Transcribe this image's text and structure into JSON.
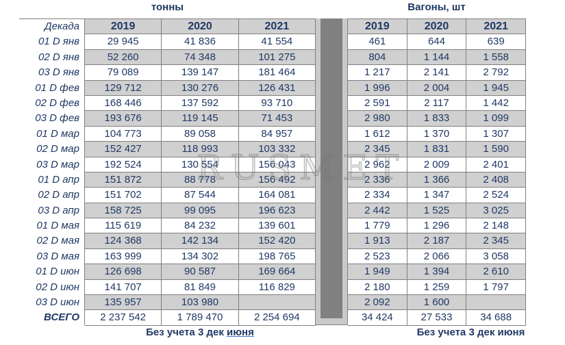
{
  "titles": {
    "left": "тонны",
    "right": "Вагоны, шт"
  },
  "label_header": "Декада",
  "total_label": "ВСЕГО",
  "years": [
    "2019",
    "2020",
    "2021"
  ],
  "row_labels": [
    "01 D янв",
    "02 D янв",
    "03 D янв",
    "01 D фев",
    "02 D фев",
    "03 D фев",
    "01 D мар",
    "02 D мар",
    "03 D мар",
    "01 D апр",
    "02 D апр",
    "03 D апр",
    "01 D мая",
    "02 D мая",
    "03 D мая",
    "01 D июн",
    "02 D июн",
    "03 D июн"
  ],
  "tons": {
    "rows": [
      [
        "29 945",
        "41 836",
        "41 554"
      ],
      [
        "52 260",
        "74 348",
        "101 275"
      ],
      [
        "79 089",
        "139 147",
        "181 464"
      ],
      [
        "129 712",
        "130 276",
        "126 431"
      ],
      [
        "168 446",
        "137 592",
        "93 710"
      ],
      [
        "193 676",
        "119 145",
        "71 453"
      ],
      [
        "104 773",
        "89 058",
        "84 957"
      ],
      [
        "152 427",
        "118 993",
        "103 332"
      ],
      [
        "192 524",
        "130 554",
        "156 043"
      ],
      [
        "151 872",
        "88 778",
        "156 492"
      ],
      [
        "151 702",
        "87 544",
        "164 081"
      ],
      [
        "158 725",
        "99 095",
        "196 623"
      ],
      [
        "115 619",
        "84 232",
        "139 601"
      ],
      [
        "124 368",
        "142 134",
        "152 420"
      ],
      [
        "163 999",
        "134 302",
        "198 765"
      ],
      [
        "126 698",
        "90 587",
        "169 664"
      ],
      [
        "141 707",
        "81 849",
        "116 829"
      ],
      [
        "135 957",
        "103 980",
        ""
      ]
    ],
    "total": [
      "2 237 542",
      "1 789 470",
      "2 254 694"
    ]
  },
  "wagons": {
    "rows": [
      [
        "461",
        "644",
        "639"
      ],
      [
        "804",
        "1 144",
        "1 558"
      ],
      [
        "1 217",
        "2 141",
        "2 792"
      ],
      [
        "1 996",
        "2 004",
        "1 945"
      ],
      [
        "2 591",
        "2 117",
        "1 442"
      ],
      [
        "2 980",
        "1 833",
        "1 099"
      ],
      [
        "1 612",
        "1 370",
        "1 307"
      ],
      [
        "2 345",
        "1 831",
        "1 590"
      ],
      [
        "2 962",
        "2 009",
        "2 401"
      ],
      [
        "2 336",
        "1 366",
        "2 408"
      ],
      [
        "2 334",
        "1 347",
        "2 524"
      ],
      [
        "2 442",
        "1 525",
        "3 025"
      ],
      [
        "1 779",
        "1 296",
        "2 148"
      ],
      [
        "1 913",
        "2 187",
        "2 345"
      ],
      [
        "2 523",
        "2 066",
        "3 058"
      ],
      [
        "1 949",
        "1 394",
        "2 610"
      ],
      [
        "2 180",
        "1 259",
        "1 797"
      ],
      [
        "2 092",
        "1 600",
        ""
      ]
    ],
    "total": [
      "34 424",
      "27 533",
      "34 688"
    ]
  },
  "footnotes": {
    "left_prefix": "Без учета 3 дек ",
    "left_link": "июня",
    "right": "Без учета 3 дек июня"
  },
  "watermark": "RUSMET",
  "colors": {
    "text": "#1f3864",
    "stripe": "#d0d0d0",
    "header_bg": "#d0d0d0",
    "border": "#7f7f7f",
    "divider_bar": "#808080",
    "divider_bg": "#c9c9c9",
    "link_underline": "#4472c4"
  }
}
